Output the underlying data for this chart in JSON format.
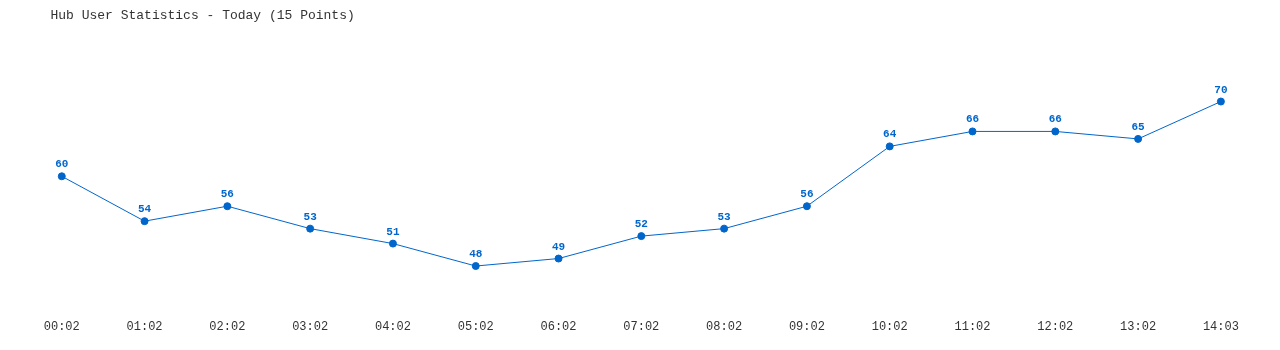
{
  "chart_data": {
    "type": "line",
    "title": "Hub User Statistics - Today (15 Points)",
    "categories": [
      "00:02",
      "01:02",
      "02:02",
      "03:02",
      "04:02",
      "05:02",
      "06:02",
      "07:02",
      "08:02",
      "09:02",
      "10:02",
      "11:02",
      "12:02",
      "13:02",
      "14:03"
    ],
    "series": [
      {
        "color": "#0066cc",
        "values": [
          60,
          54,
          56,
          53,
          51,
          48,
          49,
          52,
          53,
          56,
          64,
          66,
          66,
          65,
          70
        ]
      }
    ],
    "data_labels": true,
    "marker": "circle",
    "line_style": "solid"
  }
}
